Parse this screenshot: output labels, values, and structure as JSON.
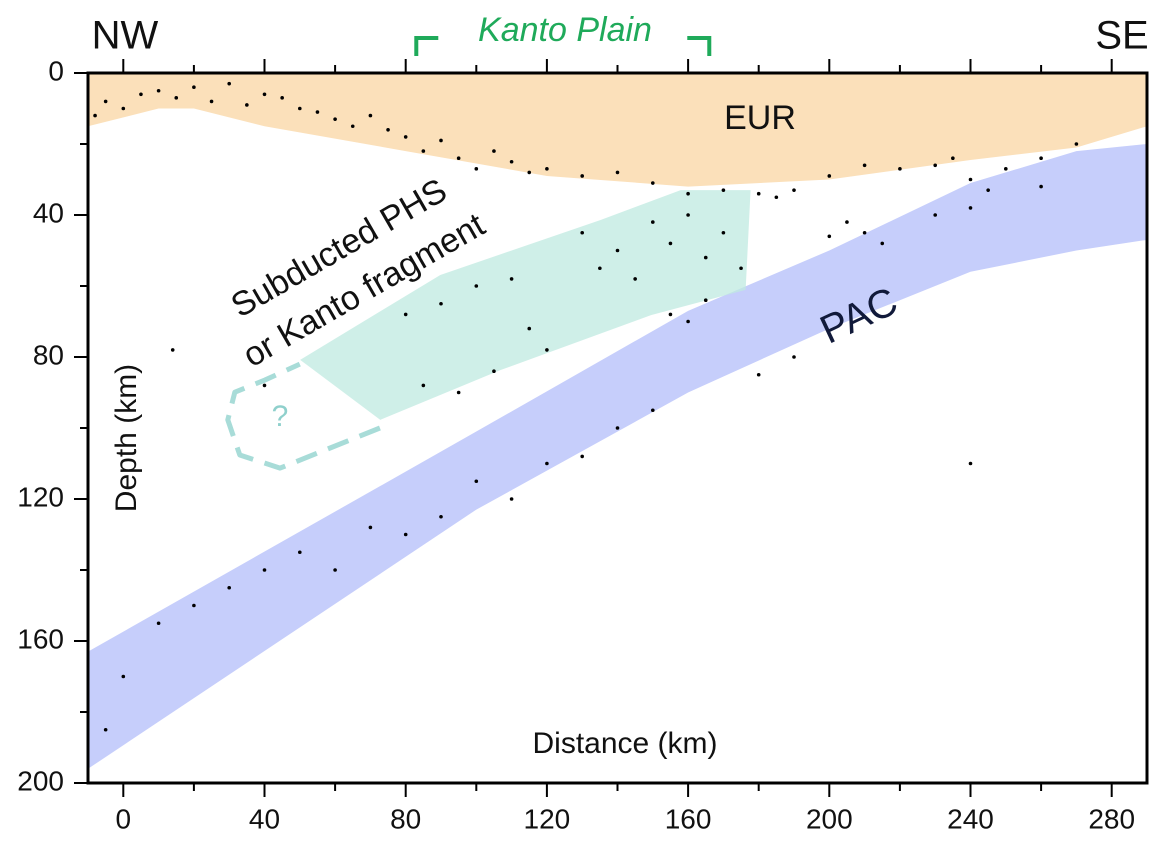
{
  "chart_data": {
    "type": "scatter",
    "left_label": "NW",
    "right_label": "SE",
    "kanto_plain": {
      "label": "Kanto Plain",
      "range": [
        83,
        166
      ],
      "color": "#1faa5a"
    },
    "x_label": "Distance (km)",
    "y_label": "Depth (km)",
    "xlim": [
      -10,
      290
    ],
    "xticks": [
      0,
      40,
      80,
      120,
      160,
      200,
      240,
      280
    ],
    "xminor_ticks": [
      20,
      60,
      100,
      140,
      180,
      220,
      260
    ],
    "ylim": [
      0,
      200
    ],
    "yticks": [
      0,
      40,
      80,
      120,
      160,
      200
    ],
    "yminor_ticks": [
      20,
      60,
      100,
      140,
      180
    ],
    "y_inverted": true,
    "point_color": "#000000",
    "regions": [
      {
        "label": "EUR",
        "color": "#fbe0ba",
        "polygon": [
          [
            -10,
            0
          ],
          [
            290,
            0
          ],
          [
            290,
            15
          ],
          [
            270,
            21
          ],
          [
            240,
            24.5
          ],
          [
            200,
            30
          ],
          [
            160,
            32
          ],
          [
            120,
            29
          ],
          [
            80,
            22
          ],
          [
            40,
            15
          ],
          [
            20,
            10
          ],
          [
            10,
            10
          ],
          [
            -10,
            15
          ]
        ]
      },
      {
        "label": "PAC",
        "color": "#c6cefb",
        "polygon": [
          [
            -10,
            163
          ],
          [
            100,
            101
          ],
          [
            160,
            67
          ],
          [
            200,
            50
          ],
          [
            240,
            31
          ],
          [
            270,
            22
          ],
          [
            290,
            20
          ],
          [
            290,
            47
          ],
          [
            270,
            50
          ],
          [
            240,
            56
          ],
          [
            200,
            72
          ],
          [
            160,
            90
          ],
          [
            100,
            123
          ],
          [
            -10,
            196
          ]
        ]
      },
      {
        "label": [
          "Subducted PHS",
          "or Kanto fragment"
        ],
        "color": "#bfeae0",
        "polygon": [
          [
            50.1,
            80.8
          ],
          [
            89.8,
            56.9
          ],
          [
            135.2,
            41.4
          ],
          [
            157.9,
            33
          ],
          [
            177.7,
            33
          ],
          [
            176.3,
            61.1
          ],
          [
            149.5,
            68.2
          ],
          [
            106.8,
            83.7
          ],
          [
            72.8,
            97.7
          ]
        ]
      },
      {
        "label": "?",
        "color": "#a8dcd8",
        "dashed": true,
        "polygon": [
          [
            72.7,
            100
          ],
          [
            44.4,
            111.3
          ],
          [
            33,
            107.6
          ],
          [
            29.6,
            97.7
          ],
          [
            31.6,
            89.9
          ],
          [
            40.1,
            86.5
          ],
          [
            50,
            82
          ]
        ]
      }
    ],
    "x": [
      -8,
      -5,
      0,
      5,
      10,
      15,
      20,
      25,
      30,
      35,
      40,
      45,
      50,
      55,
      60,
      65,
      70,
      75,
      80,
      85,
      90,
      95,
      100,
      105,
      110,
      115,
      120,
      130,
      140,
      150,
      160,
      170,
      180,
      185,
      190,
      200,
      210,
      220,
      230,
      235,
      240,
      245,
      250,
      260,
      270,
      80,
      90,
      100,
      110,
      115,
      120,
      130,
      135,
      140,
      145,
      150,
      155,
      160,
      165,
      170,
      175,
      155,
      165,
      160,
      95,
      105,
      85,
      210,
      205,
      215,
      200,
      140,
      150,
      130,
      120,
      110,
      90,
      70,
      50,
      40,
      30,
      20,
      10,
      0,
      -5,
      60,
      80,
      100,
      180,
      190,
      230,
      240,
      260,
      40,
      14,
      240
    ],
    "y": [
      12,
      8,
      10,
      6,
      5,
      7,
      4,
      8,
      3,
      9,
      6,
      7,
      10,
      11,
      13,
      15,
      12,
      16,
      18,
      22,
      19,
      24,
      27,
      22,
      25,
      28,
      27,
      29,
      28,
      31,
      34,
      33,
      34,
      35,
      33,
      29,
      26,
      27,
      26,
      24,
      30,
      33,
      27,
      24,
      20,
      68,
      65,
      60,
      58,
      72,
      78,
      45,
      55,
      50,
      58,
      42,
      48,
      40,
      52,
      45,
      55,
      68,
      64,
      70,
      90,
      84,
      88,
      45,
      42,
      48,
      46,
      100,
      95,
      108,
      110,
      120,
      125,
      128,
      135,
      140,
      145,
      150,
      155,
      170,
      185,
      140,
      130,
      115,
      85,
      80,
      40,
      38,
      32,
      88,
      78,
      110
    ]
  }
}
